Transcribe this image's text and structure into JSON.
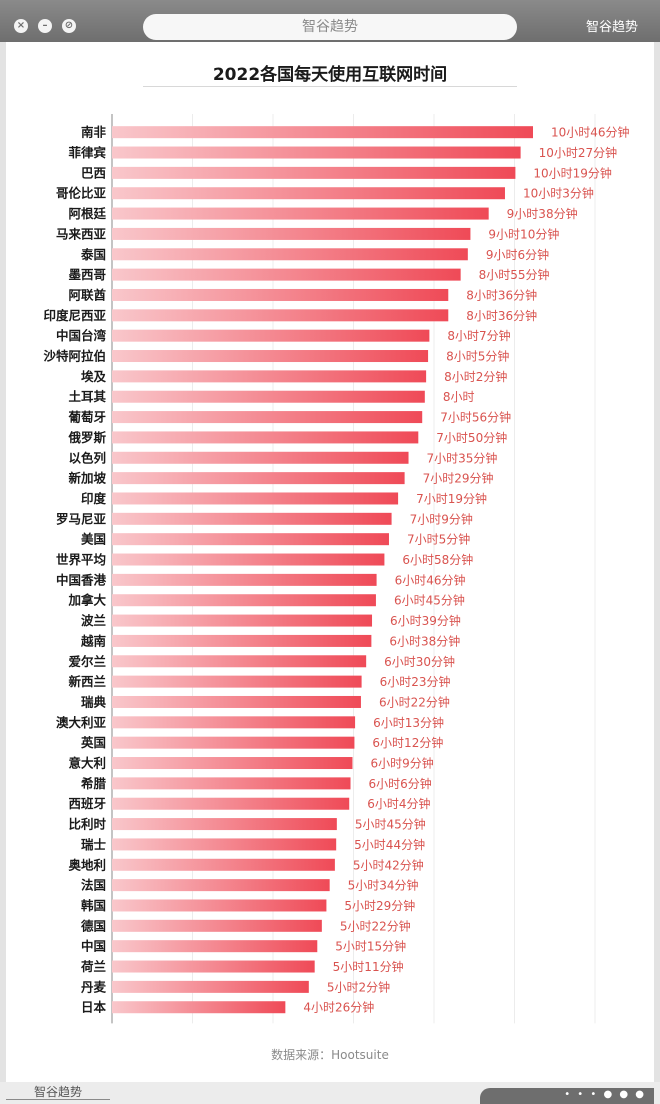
{
  "window": {
    "address_text": "智谷趋势",
    "brand_top": "智谷趋势",
    "brand_bottom": "智谷趋势",
    "dots": "• • • ● ● ●"
  },
  "chart_data": {
    "type": "bar",
    "orientation": "horizontal",
    "title": "2022各国每天使用互联网时间",
    "source": "数据来源：Hootsuite",
    "unit": "minutes",
    "grid": true,
    "bar_color_start": "#f9c7cb",
    "bar_color_end": "#ef4a57",
    "label_color": "#d9534f",
    "categories": [
      "南非",
      "菲律宾",
      "巴西",
      "哥伦比亚",
      "阿根廷",
      "马来西亚",
      "泰国",
      "墨西哥",
      "阿联酋",
      "印度尼西亚",
      "中国台湾",
      "沙特阿拉伯",
      "埃及",
      "土耳其",
      "葡萄牙",
      "俄罗斯",
      "以色列",
      "新加坡",
      "印度",
      "罗马尼亚",
      "美国",
      "世界平均",
      "中国香港",
      "加拿大",
      "波兰",
      "越南",
      "爱尔兰",
      "新西兰",
      "瑞典",
      "澳大利亚",
      "英国",
      "意大利",
      "希腊",
      "西班牙",
      "比利时",
      "瑞士",
      "奥地利",
      "法国",
      "韩国",
      "德国",
      "中国",
      "荷兰",
      "丹麦",
      "日本"
    ],
    "values": [
      646,
      627,
      619,
      603,
      578,
      550,
      546,
      535,
      516,
      516,
      487,
      485,
      482,
      480,
      476,
      470,
      455,
      449,
      439,
      429,
      425,
      418,
      406,
      405,
      399,
      398,
      390,
      383,
      382,
      373,
      372,
      369,
      366,
      364,
      345,
      344,
      342,
      334,
      329,
      322,
      315,
      311,
      302,
      266
    ],
    "value_labels": [
      "10小时46分钟",
      "10小时27分钟",
      "10小时19分钟",
      "10小时3分钟",
      "9小时38分钟",
      "9小时10分钟",
      "9小时6分钟",
      "8小时55分钟",
      "8小时36分钟",
      "8小时36分钟",
      "8小时7分钟",
      "8小时5分钟",
      "8小时2分钟",
      "8小时",
      "7小时56分钟",
      "7小时50分钟",
      "7小时35分钟",
      "7小时29分钟",
      "7小时19分钟",
      "7小时9分钟",
      "7小时5分钟",
      "6小时58分钟",
      "6小时46分钟",
      "6小时45分钟",
      "6小时39分钟",
      "6小时38分钟",
      "6小时30分钟",
      "6小时23分钟",
      "6小时22分钟",
      "6小时13分钟",
      "6小时12分钟",
      "6小时9分钟",
      "6小时6分钟",
      "6小时4分钟",
      "5小时45分钟",
      "5小时44分钟",
      "5小时42分钟",
      "5小时34分钟",
      "5小时29分钟",
      "5小时22分钟",
      "5小时15分钟",
      "5小时11分钟",
      "5小时2分钟",
      "4小时26分钟"
    ]
  }
}
